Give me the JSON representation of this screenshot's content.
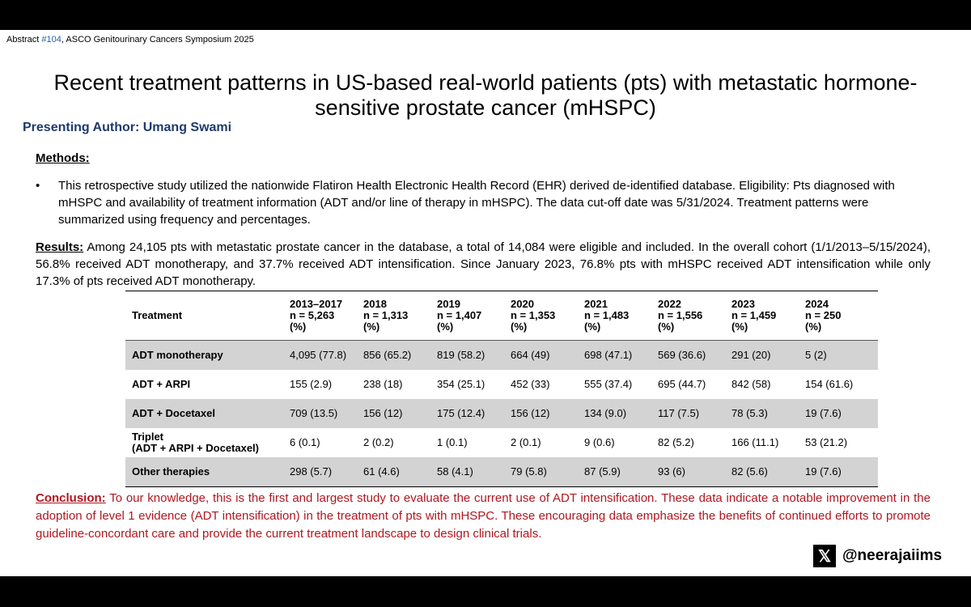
{
  "header": {
    "prefix": "Abstract ",
    "abstract_number": "#104",
    "suffix": ", ASCO Genitourinary Cancers Symposium 2025"
  },
  "title": "Recent treatment patterns in US-based real-world patients (pts) with metastatic hormone-sensitive prostate cancer (mHSPC)",
  "presenting_author": "Presenting Author: Umang Swami",
  "methods": {
    "heading": "Methods:",
    "bullet": "•",
    "text": "This retrospective study utilized the nationwide Flatiron Health Electronic Health Record (EHR) derived de-identified database. Eligibility: Pts diagnosed with mHSPC and availability of treatment information (ADT and/or line of therapy in mHSPC). The data cut-off date was 5/31/2024. Treatment patterns were summarized using frequency and percentages."
  },
  "results": {
    "label": "Results:",
    "text": " Among 24,105 pts with metastatic prostate cancer in the database, a total of 14,084 were eligible and included. In the overall cohort (1/1/2013–5/15/2024), 56.8% received ADT monotherapy, and 37.7% received ADT intensification. Since January 2023, 76.8% pts with mHSPC received ADT intensification while only 17.3% of pts received ADT monotherapy."
  },
  "table": {
    "header_treatment": "Treatment",
    "years": [
      {
        "year": "2013–2017",
        "n": "n = 5,263",
        "unit": "(%)"
      },
      {
        "year": "2018",
        "n": "n = 1,313",
        "unit": "(%)"
      },
      {
        "year": "2019",
        "n": "n = 1,407",
        "unit": "(%)"
      },
      {
        "year": "2020",
        "n": "n = 1,353",
        "unit": "(%)"
      },
      {
        "year": "2021",
        "n": "n = 1,483",
        "unit": "(%)"
      },
      {
        "year": "2022",
        "n": "n = 1,556",
        "unit": "(%)"
      },
      {
        "year": "2023",
        "n": "n = 1,459",
        "unit": "(%)"
      },
      {
        "year": "2024",
        "n": "n = 250",
        "unit": "(%)"
      }
    ],
    "rows": [
      {
        "treatment": "ADT monotherapy",
        "treatment_sub": "",
        "cells": [
          "4,095 (77.8)",
          "856 (65.2)",
          "819 (58.2)",
          "664 (49)",
          "698 (47.1)",
          "569 (36.6)",
          "291 (20)",
          "5 (2)"
        ]
      },
      {
        "treatment": "ADT + ARPI",
        "treatment_sub": "",
        "cells": [
          "155 (2.9)",
          "238 (18)",
          "354 (25.1)",
          "452 (33)",
          "555 (37.4)",
          "695 (44.7)",
          "842 (58)",
          "154 (61.6)"
        ]
      },
      {
        "treatment": "ADT + Docetaxel",
        "treatment_sub": "",
        "cells": [
          "709 (13.5)",
          "156 (12)",
          "175 (12.4)",
          "156 (12)",
          "134 (9.0)",
          "117 (7.5)",
          "78 (5.3)",
          "19 (7.6)"
        ]
      },
      {
        "treatment": "Triplet",
        "treatment_sub": "(ADT + ARPI + Docetaxel)",
        "cells": [
          "6 (0.1)",
          "2 (0.2)",
          "1 (0.1)",
          "2 (0.1)",
          "9 (0.6)",
          "82 (5.2)",
          "166 (11.1)",
          "53 (21.2)"
        ]
      },
      {
        "treatment": "Other therapies",
        "treatment_sub": "",
        "cells": [
          "298 (5.7)",
          "61 (4.6)",
          "58 (4.1)",
          "79 (5.8)",
          "87 (5.9)",
          "93 (6)",
          "82 (5.6)",
          "19 (7.6)"
        ]
      }
    ]
  },
  "conclusion": {
    "label": "Conclusion:",
    "text": " To our knowledge, this is the first and largest study to evaluate the current use of ADT intensification. These data indicate a notable improvement in the adoption of level 1 evidence (ADT intensification) in the treatment of pts with mHSPC. These encouraging data emphasize the benefits of continued efforts to promote guideline-concordant care and provide the current treatment landscape to design clinical trials."
  },
  "social": {
    "logo": "𝕏",
    "icon": "x-logo-icon",
    "handle": "@neerajaiims"
  },
  "colors": {
    "author": "#1f3a6b",
    "abstract_number": "#1f5fb3",
    "conclusion": "#b0171f",
    "row_shade": "#d3d3d3"
  }
}
